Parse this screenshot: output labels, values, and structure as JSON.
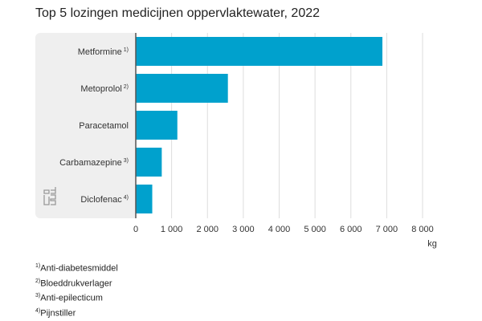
{
  "chart_data": {
    "type": "bar",
    "orientation": "horizontal",
    "title": "Top 5 lozingen medicijnen oppervlaktewater, 2022",
    "categories": [
      "Metformine",
      "Metoprolol",
      "Paracetamol",
      "Carbamazepine",
      "Diclofenac"
    ],
    "category_notes": [
      "1)",
      "2)",
      "",
      "3)",
      "4)"
    ],
    "values": [
      6880,
      2570,
      1160,
      725,
      460
    ],
    "xlabel": "kg",
    "xlim": [
      0,
      8000
    ],
    "xticks": [
      0,
      1000,
      2000,
      3000,
      4000,
      5000,
      6000,
      7000,
      8000
    ],
    "xtick_labels": [
      "0",
      "1 000",
      "2 000",
      "3 000",
      "4 000",
      "5 000",
      "6 000",
      "7 000",
      "8 000"
    ],
    "grid": true,
    "bar_color": "#00a1cd"
  },
  "footnotes": [
    {
      "mark": "1)",
      "text": "Anti-diabetesmiddel"
    },
    {
      "mark": "2)",
      "text": "Bloeddrukverlager"
    },
    {
      "mark": "3)",
      "text": "Anti-epilecticum"
    },
    {
      "mark": "4)",
      "text": "Pijnstiller"
    }
  ],
  "logo": "cbs"
}
